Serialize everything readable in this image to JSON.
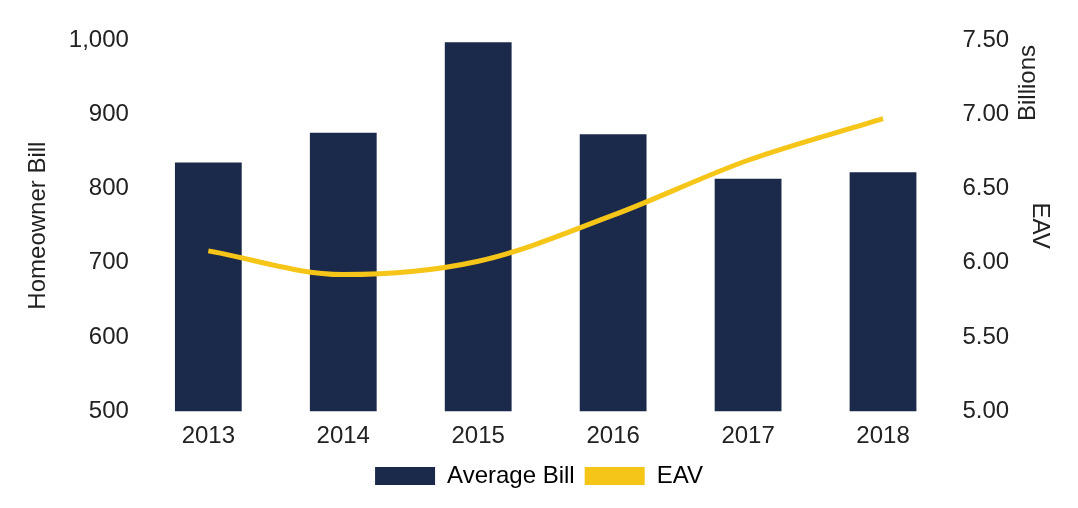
{
  "chart_data": {
    "type": "bar",
    "categories": [
      "2013",
      "2014",
      "2015",
      "2016",
      "2017",
      "2018"
    ],
    "series": [
      {
        "name": "Average Bill",
        "color": "#1b2a4a",
        "values": [
          835,
          875,
          997,
          873,
          813,
          822
        ]
      },
      {
        "name": "EAV",
        "type": "line",
        "axis": "y2",
        "color": "#f5c518",
        "values": [
          6.08,
          5.92,
          6.01,
          6.32,
          6.69,
          6.97
        ]
      }
    ],
    "ylabel": "Homeowner Bill",
    "y2label": "EAV",
    "annotations": [
      "Billions"
    ],
    "ylim": [
      500,
      1000
    ],
    "yticks": [
      {
        "value": 500,
        "label": "500"
      },
      {
        "value": 600,
        "label": "600"
      },
      {
        "value": 700,
        "label": "700"
      },
      {
        "value": 800,
        "label": "800"
      },
      {
        "value": 900,
        "label": "900"
      },
      {
        "value": 1000,
        "label": "1,000"
      }
    ],
    "y2lim": [
      5,
      7.5
    ],
    "y2ticks": [
      {
        "value": 5,
        "label": "5.00"
      },
      {
        "value": 5.5,
        "label": "5.50"
      },
      {
        "value": 6,
        "label": "6.00"
      },
      {
        "value": 6.5,
        "label": "6.50"
      },
      {
        "value": 7,
        "label": "7.00"
      },
      {
        "value": 7.5,
        "label": "7.50"
      }
    ],
    "legend": "bottom",
    "marker": "none",
    "grid": false
  }
}
